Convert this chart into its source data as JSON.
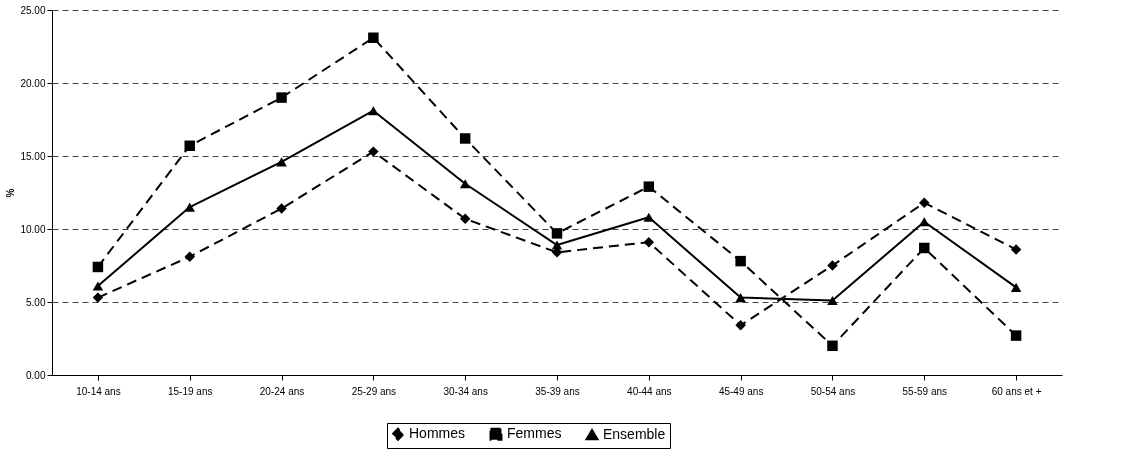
{
  "chart_data": {
    "type": "line",
    "ylabel": "%",
    "categories": [
      "10-14 ans",
      "15-19 ans",
      "20-24 ans",
      "25-29 ans",
      "30-34 ans",
      "35-39 ans",
      "40-44 ans",
      "45-49 ans",
      "50-54 ans",
      "55-59 ans",
      "60 ans et +"
    ],
    "series": [
      {
        "name": "Hommes",
        "color": "#000000",
        "marker": "diamond",
        "line_style": "dashed",
        "values": [
          5.3,
          8.1,
          11.4,
          15.3,
          10.7,
          8.4,
          9.1,
          3.4,
          7.5,
          11.8,
          8.6
        ]
      },
      {
        "name": "Femmes",
        "color": "#000000",
        "marker": "square",
        "line_style": "dashed",
        "values": [
          7.4,
          15.7,
          19.0,
          23.1,
          16.2,
          9.7,
          12.9,
          7.8,
          2.0,
          8.7,
          2.7
        ]
      },
      {
        "name": "Ensemble",
        "color": "#000000",
        "marker": "triangle",
        "line_style": "solid",
        "values": [
          6.1,
          11.5,
          14.6,
          18.1,
          13.1,
          8.9,
          10.8,
          5.3,
          5.1,
          10.5,
          6.0
        ]
      }
    ],
    "ylim": [
      0,
      25
    ],
    "yticks": [
      {
        "value": 0,
        "label": "0.00"
      },
      {
        "value": 5,
        "label": "5.00"
      },
      {
        "value": 10,
        "label": "10.00"
      },
      {
        "value": 15,
        "label": "15.00"
      },
      {
        "value": 20,
        "label": "20.00"
      },
      {
        "value": 25,
        "label": "25.00"
      }
    ],
    "grid": "y",
    "legend": "bottom"
  }
}
